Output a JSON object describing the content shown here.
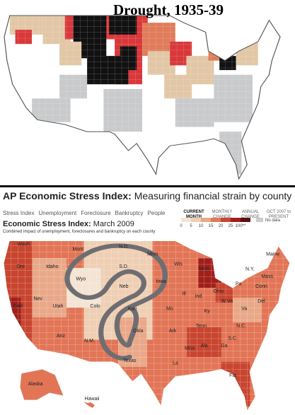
{
  "top_map": {
    "title": "Drought, 1935-39"
  },
  "stress_panel": {
    "title": "AP Economic Stress Index:",
    "title_suffix": "Measuring financial strain by county",
    "tabs": [
      "Stress Index",
      "Unemployment",
      "Foreclosure",
      "Bankruptcy",
      "People"
    ],
    "views": [
      "CURRENT MONTH",
      "MONTHLY CHANGE",
      "ANNUAL CHANGE",
      "OCT 2007 to PRESENT"
    ],
    "subtitle": "Economic Stress Index:",
    "subtitle_date": "March 2009",
    "note": "Combined impact of unemployment, foreclosures and bankruptcy on each county",
    "legend": [
      "0",
      "5",
      "10",
      "15",
      "20",
      "25",
      "100**"
    ],
    "no_data": "No data",
    "state_labels": [
      "Wash",
      "Ore",
      "Calif",
      "Nev",
      "Idaho",
      "Mont",
      "Wyo",
      "Utah",
      "Colo",
      "Ariz",
      "N.M.",
      "N.D.",
      "S.D.",
      "Neb",
      "Kan",
      "Okla",
      "Texas",
      "Minn",
      "Iowa",
      "Mo",
      "Ark",
      "La",
      "Miss",
      "Ala",
      "Ga",
      "Fla",
      "Tenn",
      "Ky",
      "Ill",
      "Ind",
      "Ohio",
      "Mich",
      "Wis",
      "Pa",
      "N.Y.",
      "Va",
      "N.C.",
      "S.C.",
      "Maine",
      "Mass",
      "Conn",
      "Del",
      "W.Va",
      "Alaska",
      "Hawaii"
    ]
  }
}
